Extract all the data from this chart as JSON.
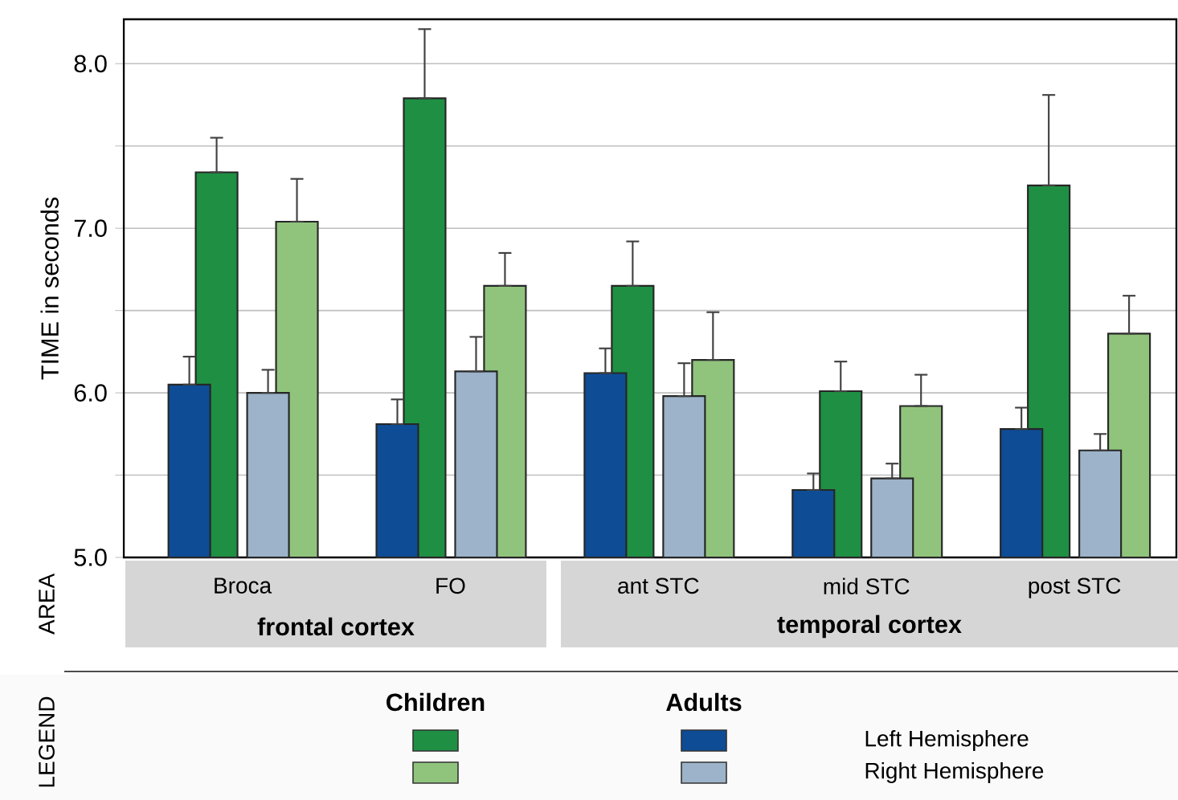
{
  "chart_data": {
    "type": "bar",
    "ylabel": "TIME  in seconds",
    "categories": [
      "Broca",
      "FO",
      "ant STC",
      "mid STC",
      "post STC"
    ],
    "series": [
      {
        "color": "#1f8f43",
        "values": [
          7.34,
          7.79,
          6.65,
          6.01,
          7.26
        ],
        "errors": [
          [
            7.34,
            7.55
          ],
          [
            7.79,
            8.21
          ],
          [
            6.65,
            6.92
          ],
          [
            6.01,
            6.19
          ],
          [
            7.26,
            7.81
          ]
        ]
      },
      {
        "color": "#0e4c96",
        "values": [
          6.05,
          5.81,
          6.12,
          5.41,
          5.78
        ],
        "errors": [
          [
            6.05,
            6.22
          ],
          [
            5.81,
            5.96
          ],
          [
            6.12,
            6.27
          ],
          [
            5.41,
            5.51
          ],
          [
            5.78,
            5.91
          ]
        ]
      },
      {
        "color": "#90c47c",
        "values": [
          7.04,
          6.65,
          6.2,
          5.92,
          6.36
        ],
        "errors": [
          [
            7.04,
            7.3
          ],
          [
            6.65,
            6.85
          ],
          [
            6.2,
            6.49
          ],
          [
            5.92,
            6.11
          ],
          [
            6.36,
            6.59
          ]
        ]
      },
      {
        "color": "#9cb3c9",
        "values": [
          6.0,
          6.13,
          5.98,
          5.48,
          5.65
        ],
        "errors": [
          [
            6.0,
            6.14
          ],
          [
            6.13,
            6.34
          ],
          [
            5.98,
            6.18
          ],
          [
            5.48,
            5.57
          ],
          [
            5.65,
            5.75
          ]
        ]
      }
    ],
    "ylim": [
      5,
      8.27
    ],
    "yticks": [
      {
        "value": 5,
        "label": "5.0"
      },
      {
        "value": 5.5,
        "label": null
      },
      {
        "value": 6,
        "label": "6.0"
      },
      {
        "value": 6.5,
        "label": null
      },
      {
        "value": 7,
        "label": "7.0"
      },
      {
        "value": 7.5,
        "label": null
      },
      {
        "value": 8,
        "label": "8.0"
      }
    ],
    "grid": "y",
    "annotations": [
      "frontal cortex",
      "temporal cortex",
      "AREA",
      "LEGEND",
      "Children",
      "Adults",
      "Left Hemisphere",
      "Right Hemisphere"
    ]
  }
}
